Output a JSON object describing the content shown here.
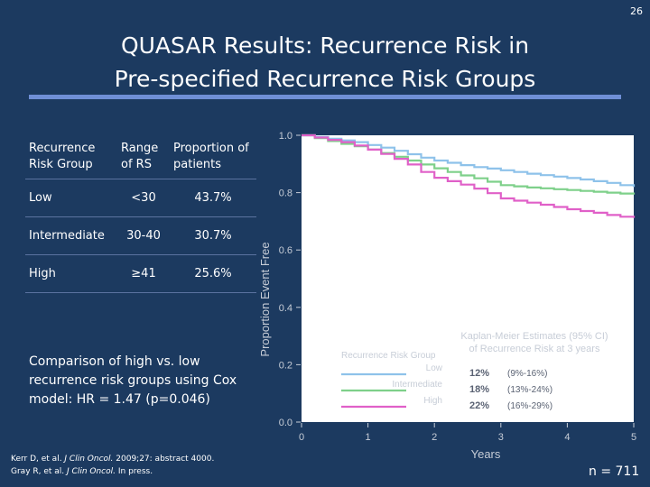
{
  "slide_number": "26",
  "title": {
    "line1": "QUASAR Results: Recurrence Risk in",
    "line2": "Pre-specified Recurrence Risk Groups"
  },
  "risk_table": {
    "headers": [
      "Recurrence Risk Group",
      "Range of RS",
      "Proportion of patients"
    ],
    "rows": [
      {
        "group": "Low",
        "range": "<30",
        "proportion": "43.7%"
      },
      {
        "group": "Intermediate",
        "range": "30-40",
        "proportion": "30.7%"
      },
      {
        "group": "High",
        "range": "≥41",
        "proportion": "25.6%"
      }
    ]
  },
  "hr_note": "Comparison of high vs. low recurrence risk groups using Cox model:  HR = 1.47 (p=0.046)",
  "references": {
    "ref1_pre": "Kerr D, et al. ",
    "ref1_journal": "J Clin Oncol.",
    "ref1_post": " 2009;27: abstract 4000.",
    "ref2_pre": "Gray R, et al. ",
    "ref2_journal": "J Clin Oncol.",
    "ref2_post": " In press."
  },
  "n_count": "n = 711",
  "colors": {
    "background": "#1c3a60",
    "title_rule": "#6f8fd6",
    "plot_background": "#ffffff",
    "low": "#8ec2ea",
    "intermediate": "#7ed08a",
    "high": "#e060c8"
  },
  "chart_data": {
    "type": "line",
    "title": "",
    "xlabel": "Years",
    "ylabel": "Proportion Event Free",
    "xlim": [
      0,
      5
    ],
    "ylim": [
      0.0,
      1.0
    ],
    "x_ticks": [
      "0",
      "1",
      "2",
      "3",
      "4",
      "5"
    ],
    "y_ticks": [
      "0.0",
      "0.2",
      "0.4",
      "0.6",
      "0.8",
      "1.0"
    ],
    "grid": false,
    "legend": {
      "placement": "bottom-right",
      "header": "Kaplan-Meier Estimates (95% CI) of Recurrence Risk at 3 years",
      "group_title": "Recurrence Risk Group",
      "entries": [
        {
          "name": "Low",
          "estimate": "12%",
          "ci": "(9%-16%)"
        },
        {
          "name": "Intermediate",
          "estimate": "18%",
          "ci": "(13%-24%)"
        },
        {
          "name": "High",
          "estimate": "22%",
          "ci": "(16%-29%)"
        }
      ]
    },
    "series": [
      {
        "name": "Low",
        "x": [
          0,
          0.2,
          0.4,
          0.6,
          0.8,
          1.0,
          1.2,
          1.4,
          1.6,
          1.8,
          2.0,
          2.2,
          2.4,
          2.6,
          2.8,
          3.0,
          3.2,
          3.4,
          3.6,
          3.8,
          4.0,
          4.2,
          4.4,
          4.6,
          4.8,
          5.0
        ],
        "y": [
          1.0,
          0.994,
          0.988,
          0.982,
          0.976,
          0.966,
          0.957,
          0.946,
          0.934,
          0.922,
          0.912,
          0.904,
          0.896,
          0.889,
          0.884,
          0.878,
          0.872,
          0.866,
          0.861,
          0.856,
          0.851,
          0.846,
          0.84,
          0.834,
          0.826,
          0.82
        ]
      },
      {
        "name": "Intermediate",
        "x": [
          0,
          0.2,
          0.4,
          0.6,
          0.8,
          1.0,
          1.2,
          1.4,
          1.6,
          1.8,
          2.0,
          2.2,
          2.4,
          2.6,
          2.8,
          3.0,
          3.2,
          3.4,
          3.6,
          3.8,
          4.0,
          4.2,
          4.4,
          4.6,
          4.8,
          5.0
        ],
        "y": [
          1.0,
          0.99,
          0.98,
          0.97,
          0.962,
          0.95,
          0.938,
          0.925,
          0.912,
          0.898,
          0.885,
          0.872,
          0.86,
          0.85,
          0.838,
          0.826,
          0.822,
          0.818,
          0.815,
          0.812,
          0.809,
          0.806,
          0.803,
          0.8,
          0.797,
          0.793
        ]
      },
      {
        "name": "High",
        "x": [
          0,
          0.2,
          0.4,
          0.6,
          0.8,
          1.0,
          1.2,
          1.4,
          1.6,
          1.8,
          2.0,
          2.2,
          2.4,
          2.6,
          2.8,
          3.0,
          3.2,
          3.4,
          3.6,
          3.8,
          4.0,
          4.2,
          4.4,
          4.6,
          4.8,
          5.0
        ],
        "y": [
          1.0,
          0.992,
          0.984,
          0.976,
          0.964,
          0.95,
          0.935,
          0.918,
          0.898,
          0.872,
          0.852,
          0.84,
          0.828,
          0.814,
          0.798,
          0.78,
          0.772,
          0.765,
          0.758,
          0.75,
          0.742,
          0.736,
          0.73,
          0.722,
          0.716,
          0.712
        ]
      }
    ]
  }
}
